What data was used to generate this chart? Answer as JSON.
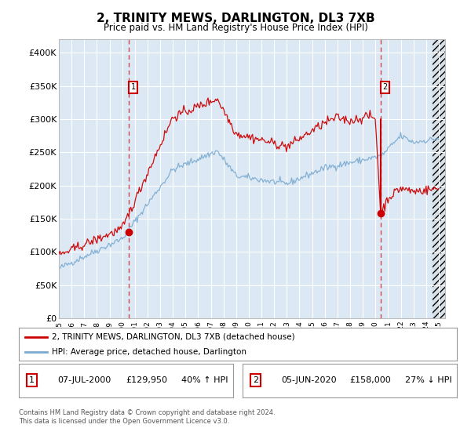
{
  "title": "2, TRINITY MEWS, DARLINGTON, DL3 7XB",
  "subtitle": "Price paid vs. HM Land Registry's House Price Index (HPI)",
  "background_color": "#ffffff",
  "plot_bg_color": "#dce9f5",
  "red_line_color": "#cc0000",
  "blue_line_color": "#7aaad0",
  "dashed_vline_color": "#cc0000",
  "ylim": [
    0,
    420000
  ],
  "yticks": [
    0,
    50000,
    100000,
    150000,
    200000,
    250000,
    300000,
    350000,
    400000
  ],
  "ytick_labels": [
    "£0",
    "£50K",
    "£100K",
    "£150K",
    "£200K",
    "£250K",
    "£300K",
    "£350K",
    "£400K"
  ],
  "year_start": 1995,
  "year_end": 2025,
  "transaction1": {
    "date": "07-JUL-2000",
    "price": 129950,
    "label": "1",
    "hpi_pct": "40% ↑ HPI"
  },
  "transaction2": {
    "date": "05-JUN-2020",
    "price": 158000,
    "label": "2",
    "hpi_pct": "27% ↓ HPI"
  },
  "legend_red_label": "2, TRINITY MEWS, DARLINGTON, DL3 7XB (detached house)",
  "legend_blue_label": "HPI: Average price, detached house, Darlington",
  "footer": "Contains HM Land Registry data © Crown copyright and database right 2024.\nThis data is licensed under the Open Government Licence v3.0."
}
